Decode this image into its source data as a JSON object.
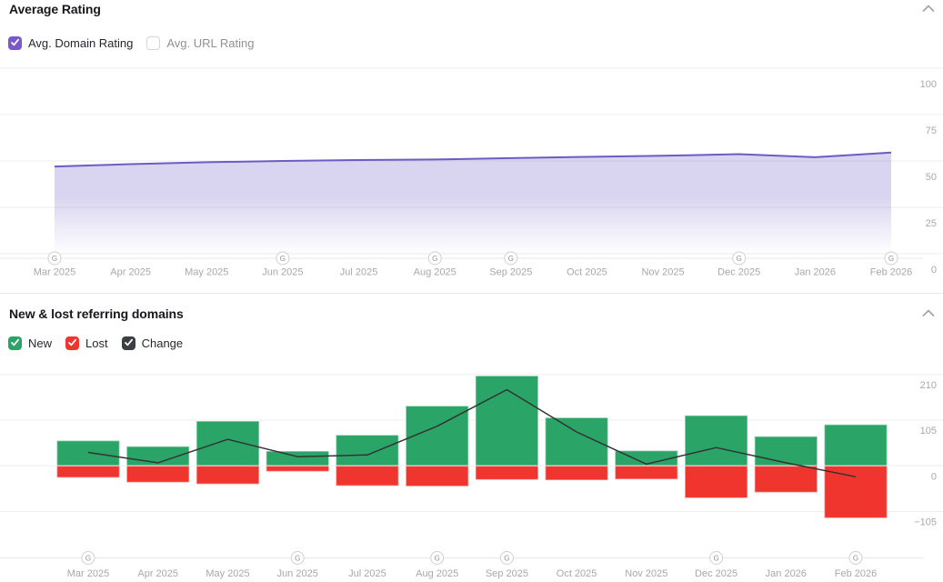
{
  "sections": [
    {
      "title": "Average Rating",
      "collapse_icon": "chevron-up",
      "legend": [
        {
          "label": "Avg. Domain Rating",
          "checked": true,
          "color": "#7a58c9"
        },
        {
          "label": "Avg. URL Rating",
          "checked": false,
          "color": null
        }
      ]
    },
    {
      "title": "New & lost referring domains",
      "collapse_icon": "chevron-up",
      "legend": [
        {
          "label": "New",
          "checked": true,
          "color": "#2aa567"
        },
        {
          "label": "Lost",
          "checked": true,
          "color": "#f0352f"
        },
        {
          "label": "Change",
          "checked": true,
          "color": "#3d3f42"
        }
      ]
    }
  ],
  "chart_data": [
    {
      "type": "area",
      "title": "Average Rating",
      "x": [
        "Mar 2025",
        "Apr 2025",
        "May 2025",
        "Jun 2025",
        "Jul 2025",
        "Aug 2025",
        "Sep 2025",
        "Oct 2025",
        "Nov 2025",
        "Dec 2025",
        "Jan 2026",
        "Feb 2026"
      ],
      "series": [
        {
          "name": "Avg. Domain Rating",
          "values": [
            47,
            48.3,
            49.3,
            50,
            50.5,
            50.8,
            51.5,
            52.2,
            52.8,
            53.7,
            52,
            54.5
          ],
          "color": "#6c5cc4"
        }
      ],
      "ylim": [
        0,
        100
      ],
      "yticks": [
        100,
        75,
        50,
        25,
        0
      ],
      "grid": true,
      "legend_position": "top-left",
      "google_update_markers": [
        "Mar 2025",
        "Jun 2025",
        "Aug 2025",
        "Sep 2025",
        "Dec 2025",
        "Feb 2026"
      ],
      "marker_glyph": "G"
    },
    {
      "type": "bar",
      "title": "New & lost referring domains",
      "categories": [
        "Mar 2025",
        "Apr 2025",
        "May 2025",
        "Jun 2025",
        "Jul 2025",
        "Aug 2025",
        "Sep 2025",
        "Oct 2025",
        "Nov 2025",
        "Dec 2025",
        "Jan 2026",
        "Feb 2026"
      ],
      "series": [
        {
          "name": "New",
          "type": "bar",
          "values": [
            58,
            45,
            103,
            34,
            71,
            138,
            207,
            111,
            35,
            116,
            68,
            95
          ],
          "color": "#2aa567"
        },
        {
          "name": "Lost",
          "type": "bar",
          "values": [
            -27,
            -38,
            -42,
            -13,
            -46,
            -47,
            -32,
            -33,
            -31,
            -74,
            -61,
            -120
          ],
          "color": "#f0352f"
        },
        {
          "name": "Change",
          "type": "line",
          "values": [
            31,
            7,
            61,
            21,
            25,
            91,
            175,
            78,
            4,
            42,
            7,
            -25
          ],
          "color": "#333333"
        }
      ],
      "ylim": [
        -210,
        240
      ],
      "yticks": [
        210,
        105,
        0,
        -105
      ],
      "grid": true,
      "google_update_markers": [
        "Mar 2025",
        "Jun 2025",
        "Aug 2025",
        "Sep 2025",
        "Dec 2025",
        "Feb 2026"
      ],
      "marker_glyph": "G"
    }
  ]
}
